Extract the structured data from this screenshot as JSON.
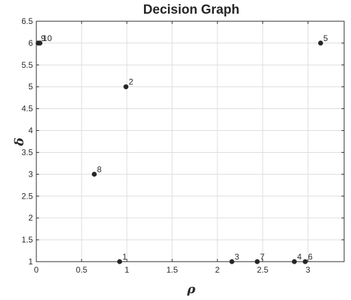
{
  "chart_data": {
    "type": "scatter",
    "title": "Decision Graph",
    "xlabel": "ρ",
    "ylabel": "δ",
    "xlim": [
      0,
      3.4
    ],
    "ylim": [
      1,
      6.5
    ],
    "xticks": [
      0,
      0.5,
      1,
      1.5,
      2,
      2.5,
      3
    ],
    "xtick_labels": [
      "0",
      "0.5",
      "1",
      "1.5",
      "2",
      "2.5",
      "3"
    ],
    "yticks": [
      1,
      1.5,
      2,
      2.5,
      3,
      3.5,
      4,
      4.5,
      5,
      5.5,
      6,
      6.5
    ],
    "ytick_labels": [
      "1",
      "1.5",
      "2",
      "2.5",
      "3",
      "3.5",
      "4",
      "4.5",
      "5",
      "5.5",
      "6",
      "6.5"
    ],
    "grid": true,
    "point_color": "#262626",
    "points": [
      {
        "label": "1",
        "x": 0.92,
        "y": 1
      },
      {
        "label": "2",
        "x": 0.99,
        "y": 5
      },
      {
        "label": "3",
        "x": 2.16,
        "y": 1
      },
      {
        "label": "4",
        "x": 2.85,
        "y": 1
      },
      {
        "label": "5",
        "x": 3.14,
        "y": 6
      },
      {
        "label": "6",
        "x": 2.97,
        "y": 1
      },
      {
        "label": "7",
        "x": 2.44,
        "y": 1
      },
      {
        "label": "8",
        "x": 0.64,
        "y": 3
      },
      {
        "label": "9",
        "x": 0.02,
        "y": 6
      },
      {
        "label": "10",
        "x": 0.04,
        "y": 6
      }
    ]
  }
}
